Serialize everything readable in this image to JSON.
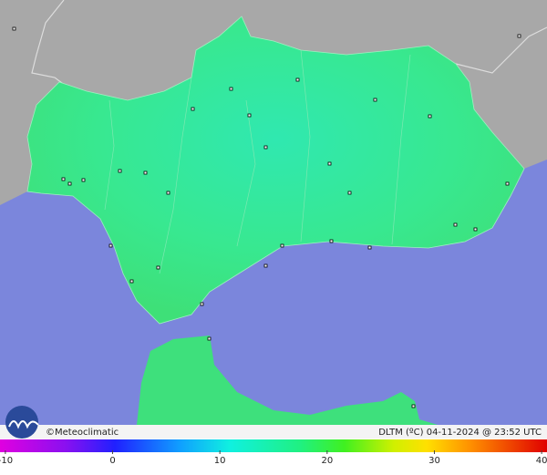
{
  "credit": "©Meteoclimatic",
  "caption": "DLTM (ºC) 04-11-2024 @ 23:52 UTC",
  "colorbar": {
    "lim": [
      -10.5,
      40.5
    ],
    "ticks": [
      -10,
      0,
      10,
      20,
      30,
      40
    ]
  }
}
